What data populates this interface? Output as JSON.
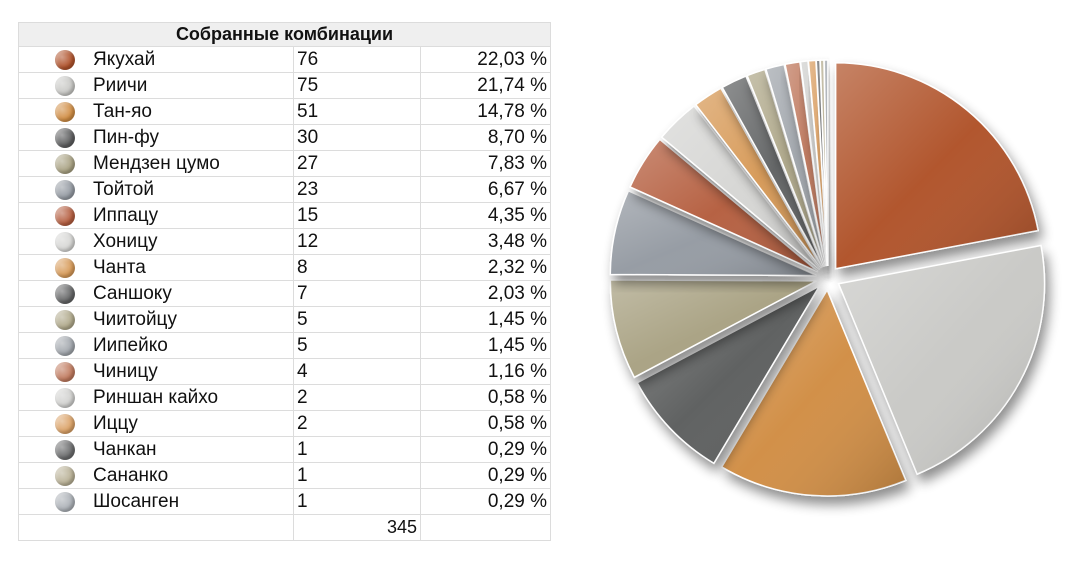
{
  "chart_data": {
    "type": "pie",
    "title": "Собранные комбинации",
    "total": "345",
    "rows": [
      {
        "name": "Якухай",
        "count": "76",
        "pct": "22,03 %",
        "value": 76,
        "color": "#b0532c"
      },
      {
        "name": "Риичи",
        "count": "75",
        "pct": "21,74 %",
        "value": 75,
        "color": "#c9c9c6"
      },
      {
        "name": "Тан-яо",
        "count": "51",
        "pct": "14,78 %",
        "value": 51,
        "color": "#d18e45"
      },
      {
        "name": "Пин-фу",
        "count": "30",
        "pct": "8,70 %",
        "value": 30,
        "color": "#5d5e5f"
      },
      {
        "name": "Мендзен цумо",
        "count": "27",
        "pct": "7,83 %",
        "value": 27,
        "color": "#a9a283"
      },
      {
        "name": "Тойтой",
        "count": "23",
        "pct": "6,67 %",
        "value": 23,
        "color": "#959ba3"
      },
      {
        "name": "Иппацу",
        "count": "15",
        "pct": "4,35 %",
        "value": 15,
        "color": "#b55e40"
      },
      {
        "name": "Хоницу",
        "count": "12",
        "pct": "3,48 %",
        "value": 12,
        "color": "#d6d6d4"
      },
      {
        "name": "Чанта",
        "count": "8",
        "pct": "2,32 %",
        "value": 8,
        "color": "#d79a58"
      },
      {
        "name": "Саншоку",
        "count": "7",
        "pct": "2,03 %",
        "value": 7,
        "color": "#646566"
      },
      {
        "name": "Чиитойцу",
        "count": "5",
        "pct": "1,45 %",
        "value": 5,
        "color": "#b0a98b"
      },
      {
        "name": "Иипейко",
        "count": "5",
        "pct": "1,45 %",
        "value": 5,
        "color": "#a2a7ad"
      },
      {
        "name": "Чиницу",
        "count": "4",
        "pct": "1,16 %",
        "value": 4,
        "color": "#c07a5e"
      },
      {
        "name": "Риншан кайхо",
        "count": "2",
        "pct": "0,58 %",
        "value": 2,
        "color": "#d1d1cf"
      },
      {
        "name": "Иццу",
        "count": "2",
        "pct": "0,58 %",
        "value": 2,
        "color": "#dba267"
      },
      {
        "name": "Чанкан",
        "count": "1",
        "pct": "0,29 %",
        "value": 1,
        "color": "#6b6c6d"
      },
      {
        "name": "Сананко",
        "count": "1",
        "pct": "0,29 %",
        "value": 1,
        "color": "#b9b196"
      },
      {
        "name": "Шосанген",
        "count": "1",
        "pct": "0,29 %",
        "value": 1,
        "color": "#acb1b7"
      }
    ]
  }
}
